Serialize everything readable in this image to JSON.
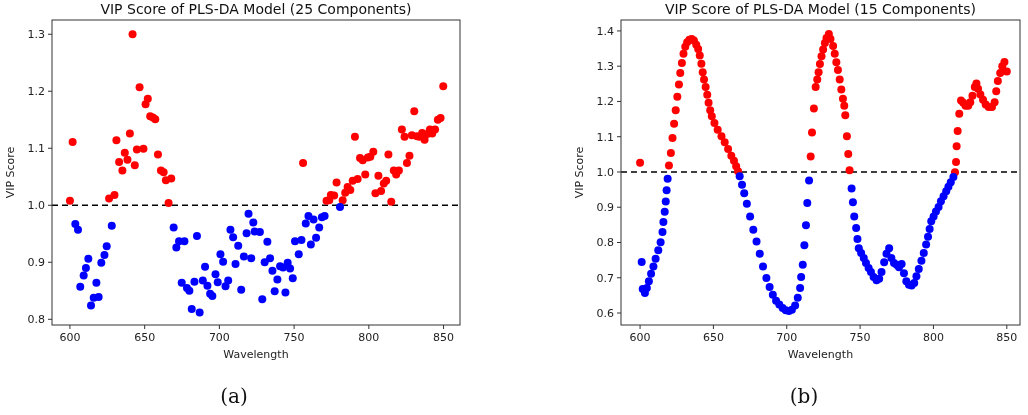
{
  "chart_data": [
    {
      "type": "scatter",
      "title": "VIP Score of PLS-DA Model (25 Components)",
      "xlabel": "Wavelength",
      "ylabel": "VIP Score",
      "marker": "circle",
      "xlim": [
        588,
        861
      ],
      "ylim": [
        0.79,
        1.325
      ],
      "xticks": [
        600,
        650,
        700,
        750,
        800,
        850
      ],
      "yticks": [
        {
          "value": 0.8,
          "label": "0.8"
        },
        {
          "value": 0.9,
          "label": "0.9"
        },
        {
          "value": 1,
          "label": "1.0"
        },
        {
          "value": 1.1,
          "label": "1.1"
        },
        {
          "value": 1.2,
          "label": "1.2"
        },
        {
          "value": 1.3,
          "label": "1.3"
        }
      ],
      "ref_lines": [
        {
          "axis": "y",
          "value": 1,
          "color": "#000000",
          "line_style": "dashed"
        }
      ],
      "annotations": [
        "(a)"
      ],
      "series": [
        {
          "color": "#ff0000",
          "x": [
            600,
            601.8,
            626.2,
            629.8,
            631.1,
            632.9,
            635.1,
            636.7,
            638.5,
            640.1,
            641.9,
            643.4,
            644.8,
            646.6,
            649.2,
            650.6,
            652.1,
            653.7,
            655.5,
            657.1,
            658.9,
            660.9,
            662.7,
            664.2,
            666,
            667.8,
            756,
            771.7,
            773.5,
            774.6,
            776.8,
            778.4,
            782.5,
            784.2,
            785.8,
            787.6,
            789.2,
            790.7,
            792.5,
            794.1,
            795.9,
            797.6,
            799.3,
            801,
            803,
            804.4,
            806.4,
            808.2,
            810,
            811.6,
            813.1,
            815,
            816.7,
            818.3,
            820.1,
            822.1,
            823.9,
            825.5,
            827.2,
            828.8,
            830.4,
            832.2,
            833.9,
            835.7,
            837.3,
            839.1,
            840.9,
            842.4,
            844.3,
            846.2,
            848,
            849.8
          ],
          "values": [
            1.008,
            1.111,
            1.012,
            1.018,
            1.114,
            1.076,
            1.061,
            1.092,
            1.08,
            1.126,
            1.3,
            1.07,
            1.098,
            1.207,
            1.099,
            1.177,
            1.187,
            1.156,
            1.154,
            1.151,
            1.089,
            1.061,
            1.058,
            1.044,
            1.004,
            1.047,
            1.074,
            1.008,
            1.009,
            1.018,
            1.017,
            1.04,
            1.009,
            1.022,
            1.032,
            1.027,
            1.043,
            1.12,
            1.046,
            1.083,
            1.079,
            1.054,
            1.084,
            1.085,
            1.094,
            1.021,
            1.052,
            1.025,
            1.038,
            1.043,
            1.089,
            1.006,
            1.061,
            1.054,
            1.061,
            1.133,
            1.12,
            1.074,
            1.087,
            1.123,
            1.165,
            1.121,
            1.12,
            1.127,
            1.115,
            1.125,
            1.133,
            1.126,
            1.133,
            1.15,
            1.153,
            1.209
          ]
        },
        {
          "color": "#0000ff",
          "x": [
            603.6,
            605.4,
            606.9,
            609.2,
            610.7,
            612.3,
            614.1,
            615.9,
            617.7,
            619.2,
            621,
            623.1,
            624.6,
            628,
            669.4,
            671.2,
            673,
            674.8,
            676.6,
            678.3,
            679.9,
            681.5,
            683.3,
            685,
            686.8,
            688.9,
            690.4,
            692,
            693.8,
            695.3,
            697.4,
            698.9,
            700.7,
            702.5,
            704.1,
            705.9,
            707.4,
            709.2,
            710.8,
            712.6,
            714.6,
            716.4,
            718.2,
            719.5,
            721.3,
            722.7,
            723.6,
            727.1,
            728.7,
            730.3,
            732.1,
            733.9,
            735.5,
            737,
            738.8,
            740.6,
            742.6,
            744.2,
            745.7,
            747.3,
            749.1,
            750.6,
            753.1,
            754.9,
            757.8,
            759.6,
            761.2,
            763,
            764.7,
            766.8,
            768.6,
            770.4,
            780.7
          ],
          "values": [
            0.967,
            0.957,
            0.857,
            0.877,
            0.89,
            0.906,
            0.824,
            0.838,
            0.864,
            0.839,
            0.899,
            0.913,
            0.928,
            0.964,
            0.961,
            0.926,
            0.937,
            0.864,
            0.937,
            0.855,
            0.85,
            0.818,
            0.866,
            0.946,
            0.812,
            0.868,
            0.892,
            0.859,
            0.845,
            0.841,
            0.879,
            0.865,
            0.914,
            0.901,
            0.858,
            0.868,
            0.957,
            0.944,
            0.897,
            0.929,
            0.852,
            0.91,
            0.951,
            0.985,
            0.907,
            0.97,
            0.954,
            0.953,
            0.835,
            0.9,
            0.936,
            0.907,
            0.885,
            0.849,
            0.87,
            0.893,
            0.891,
            0.847,
            0.899,
            0.889,
            0.872,
            0.937,
            0.914,
            0.939,
            0.968,
            0.981,
            0.931,
            0.975,
            0.943,
            0.961,
            0.979,
            0.981,
            0.997
          ]
        }
      ]
    },
    {
      "type": "scatter",
      "title": "VIP Score of PLS-DA Model (15 Components)",
      "xlabel": "Wavelength",
      "ylabel": "VIP Score",
      "marker": "circle",
      "xlim": [
        587,
        859
      ],
      "ylim": [
        0.566,
        1.431
      ],
      "xticks": [
        600,
        650,
        700,
        750,
        800,
        850
      ],
      "yticks": [
        {
          "value": 0.6,
          "label": "0.6"
        },
        {
          "value": 0.7,
          "label": "0.7"
        },
        {
          "value": 0.8,
          "label": "0.8"
        },
        {
          "value": 0.9,
          "label": "0.9"
        },
        {
          "value": 1,
          "label": "1.0"
        },
        {
          "value": 1.1,
          "label": "1.1"
        },
        {
          "value": 1.2,
          "label": "1.2"
        },
        {
          "value": 1.3,
          "label": "1.3"
        },
        {
          "value": 1.4,
          "label": "1.4"
        }
      ],
      "ref_lines": [
        {
          "axis": "y",
          "value": 1,
          "color": "#000000",
          "line_style": "dashed"
        }
      ],
      "annotations": [
        "(b)"
      ],
      "series": [
        {
          "color": "#ff0000",
          "x": [
            600,
            619.7,
            621,
            622.1,
            623.2,
            624.3,
            625.4,
            626.5,
            627.4,
            628.5,
            629.6,
            630.8,
            632.1,
            633.6,
            635.2,
            636.7,
            638.3,
            639.6,
            640.7,
            641.8,
            642.7,
            643.6,
            644.7,
            645.8,
            646.7,
            647.8,
            648.9,
            650.7,
            652.9,
            655.5,
            657.7,
            660,
            662.2,
            664,
            665.5,
            666.8,
            716.3,
            717.2,
            718.5,
            719.7,
            720.8,
            721.7,
            722.6,
            723.7,
            724.8,
            726,
            727.1,
            728.7,
            729.8,
            731.6,
            732.7,
            733.8,
            734.9,
            736.1,
            737.2,
            738.3,
            739.2,
            739.9,
            741,
            741.9,
            742.8,
            814.7,
            815.4,
            815.8,
            816.5,
            817.6,
            818.8,
            820.3,
            821.9,
            823.7,
            825.1,
            826.6,
            828.2,
            829.3,
            830.4,
            832,
            833.8,
            835.6,
            837.6,
            839.9,
            841.7,
            842.8,
            843.9,
            845.5,
            846.9,
            848.4,
            850
          ],
          "values": [
            1.026,
            1.018,
            1.054,
            1.096,
            1.137,
            1.175,
            1.213,
            1.248,
            1.281,
            1.309,
            1.335,
            1.355,
            1.368,
            1.375,
            1.377,
            1.373,
            1.361,
            1.349,
            1.33,
            1.307,
            1.283,
            1.262,
            1.241,
            1.219,
            1.196,
            1.175,
            1.158,
            1.139,
            1.12,
            1.101,
            1.084,
            1.065,
            1.046,
            1.032,
            1.016,
            1.002,
            1.044,
            1.112,
            1.18,
            1.241,
            1.262,
            1.283,
            1.306,
            1.328,
            1.347,
            1.366,
            1.38,
            1.391,
            1.377,
            1.357,
            1.335,
            1.311,
            1.289,
            1.262,
            1.234,
            1.208,
            1.188,
            1.161,
            1.101,
            1.051,
            1.005,
            0.999,
            1.028,
            1.073,
            1.116,
            1.165,
            1.203,
            1.196,
            1.188,
            1.188,
            1.198,
            1.216,
            1.241,
            1.251,
            1.236,
            1.22,
            1.205,
            1.191,
            1.184,
            1.184,
            1.198,
            1.229,
            1.258,
            1.281,
            1.3,
            1.312,
            1.285
          ]
        },
        {
          "color": "#0000ff",
          "x": [
            601.1,
            601.8,
            603.3,
            604.6,
            606,
            607.5,
            609.1,
            610.6,
            612.4,
            614,
            615.3,
            615.9,
            616.8,
            617.5,
            618.1,
            618.8,
            667.9,
            669.5,
            671,
            672.8,
            675,
            677.2,
            679.4,
            681.6,
            683.8,
            686.1,
            688.3,
            690.5,
            692.7,
            694.9,
            697.2,
            699.3,
            701.5,
            703.5,
            705.7,
            707.5,
            709.1,
            709.8,
            710.9,
            712,
            713.1,
            714,
            715.2,
            744.2,
            745.1,
            746,
            747.3,
            748.2,
            749.1,
            750.7,
            752.5,
            754,
            755.8,
            757.4,
            759.2,
            761.2,
            763,
            764.6,
            766.4,
            768,
            769.8,
            771.3,
            773.1,
            774.9,
            776.5,
            778.3,
            779.9,
            781.5,
            783.3,
            785.1,
            786.9,
            788.4,
            790,
            791.8,
            793.4,
            795,
            796.3,
            797.4,
            798.5,
            800.1,
            801.7,
            803.5,
            805.1,
            806.9,
            808.7,
            810.2,
            811.8,
            813.6
          ],
          "values": [
            0.745,
            0.668,
            0.657,
            0.671,
            0.69,
            0.711,
            0.732,
            0.754,
            0.778,
            0.801,
            0.83,
            0.858,
            0.887,
            0.916,
            0.948,
            0.981,
            0.988,
            0.964,
            0.94,
            0.91,
            0.874,
            0.836,
            0.803,
            0.768,
            0.732,
            0.699,
            0.674,
            0.652,
            0.635,
            0.624,
            0.614,
            0.608,
            0.606,
            0.609,
            0.621,
            0.643,
            0.671,
            0.702,
            0.737,
            0.792,
            0.849,
            0.912,
            0.976,
            0.953,
            0.914,
            0.874,
            0.841,
            0.81,
            0.784,
            0.77,
            0.756,
            0.742,
            0.728,
            0.716,
            0.702,
            0.693,
            0.697,
            0.716,
            0.744,
            0.768,
            0.784,
            0.756,
            0.742,
            0.737,
            0.73,
            0.739,
            0.713,
            0.69,
            0.68,
            0.678,
            0.685,
            0.704,
            0.725,
            0.748,
            0.77,
            0.794,
            0.816,
            0.838,
            0.86,
            0.874,
            0.888,
            0.901,
            0.917,
            0.931,
            0.945,
            0.958,
            0.971,
            0.986
          ]
        }
      ]
    }
  ]
}
